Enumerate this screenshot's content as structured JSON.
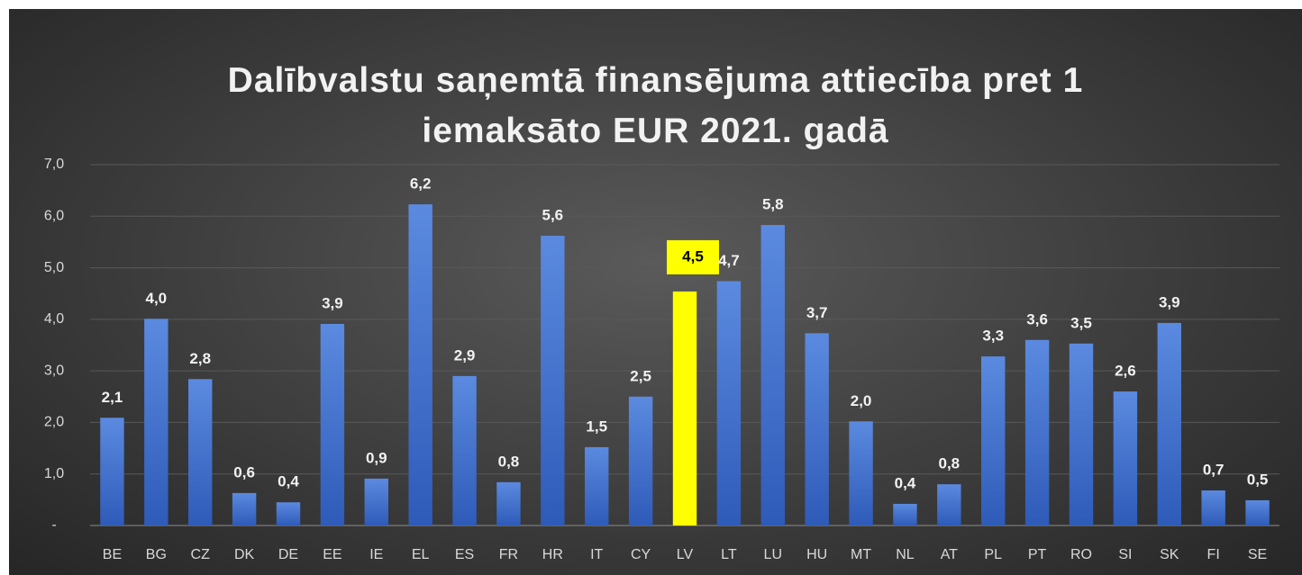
{
  "chart_data": {
    "type": "bar",
    "title": "Dalībvalstu saņemtā finansējuma attiecība pret 1 iemaksāto EUR 2021. gadā",
    "categories": [
      "BE",
      "BG",
      "CZ",
      "DK",
      "DE",
      "EE",
      "IE",
      "EL",
      "ES",
      "FR",
      "HR",
      "IT",
      "CY",
      "LV",
      "LT",
      "LU",
      "HU",
      "MT",
      "NL",
      "AT",
      "PL",
      "PT",
      "RO",
      "SI",
      "SK",
      "FI",
      "SE"
    ],
    "values": [
      2.09,
      4.01,
      2.84,
      0.63,
      0.45,
      3.91,
      0.91,
      6.23,
      2.9,
      0.84,
      5.62,
      1.52,
      2.5,
      4.54,
      4.74,
      5.83,
      3.73,
      2.02,
      0.42,
      0.8,
      3.28,
      3.6,
      3.53,
      2.6,
      3.93,
      0.68,
      0.49
    ],
    "value_labels": [
      "2,1",
      "4,0",
      "2,8",
      "0,6",
      "0,4",
      "3,9",
      "0,9",
      "6,2",
      "2,9",
      "0,8",
      "5,6",
      "1,5",
      "2,5",
      "4,5",
      "4,7",
      "5,8",
      "3,7",
      "2,0",
      "0,4",
      "0,8",
      "3,3",
      "3,6",
      "3,5",
      "2,6",
      "3,9",
      "0,7",
      "0,5"
    ],
    "colors": [
      "#4472c4",
      "#4472c4",
      "#4472c4",
      "#4472c4",
      "#4472c4",
      "#4472c4",
      "#4472c4",
      "#4472c4",
      "#4472c4",
      "#4472c4",
      "#4472c4",
      "#4472c4",
      "#4472c4",
      "#ffff00",
      "#4472c4",
      "#4472c4",
      "#4472c4",
      "#4472c4",
      "#4472c4",
      "#4472c4",
      "#4472c4",
      "#4472c4",
      "#4472c4",
      "#4472c4",
      "#4472c4",
      "#4472c4",
      "#4472c4"
    ],
    "ylim": [
      0,
      7
    ],
    "yticks": [
      {
        "value": 0,
        "label": "-"
      },
      {
        "value": 1,
        "label": "1,0"
      },
      {
        "value": 2,
        "label": "2,0"
      },
      {
        "value": 3,
        "label": "3,0"
      },
      {
        "value": 4,
        "label": "4,0"
      },
      {
        "value": 5,
        "label": "5,0"
      },
      {
        "value": 6,
        "label": "6,0"
      },
      {
        "value": 7,
        "label": "7,0"
      }
    ],
    "grid": true
  }
}
